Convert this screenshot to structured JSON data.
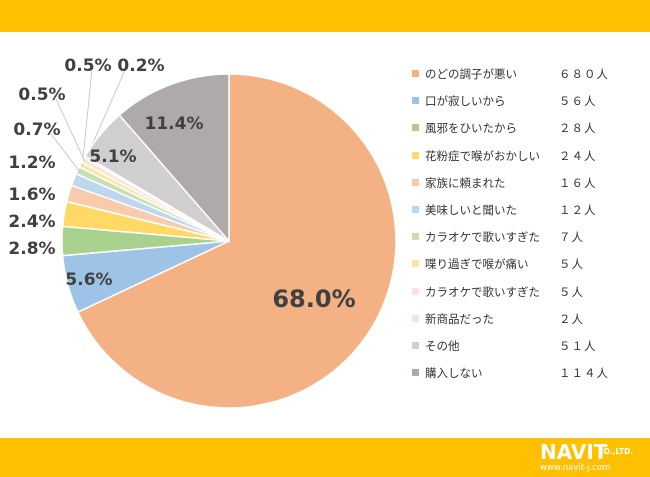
{
  "chart_data": {
    "type": "pie",
    "title": "",
    "slices": [
      {
        "label": "のどの調子が悪い",
        "count": "６８０人",
        "value": 68.0,
        "pct_label": "68.0%",
        "color": "#F4B183"
      },
      {
        "label": "口が寂しいから",
        "count": "５６人",
        "value": 5.6,
        "pct_label": "5.6%",
        "color": "#9DC3E6"
      },
      {
        "label": "風邪をひいたから",
        "count": "２８人",
        "value": 2.8,
        "pct_label": "2.8%",
        "color": "#A9D18E"
      },
      {
        "label": "花粉症で喉がおかしい",
        "count": "２４人",
        "value": 2.4,
        "pct_label": "2.4%",
        "color": "#FFD966"
      },
      {
        "label": "家族に頼まれた",
        "count": "１６人",
        "value": 1.6,
        "pct_label": "1.6%",
        "color": "#F8CBAD"
      },
      {
        "label": "美味しいと聞いた",
        "count": "１２人",
        "value": 1.2,
        "pct_label": "1.2%",
        "color": "#BDD7EE"
      },
      {
        "label": "カラオケで歌いすぎた",
        "count": "７人",
        "value": 0.7,
        "pct_label": "0.7%",
        "color": "#C5E0B4"
      },
      {
        "label": "喋り過ぎで喉が痛い",
        "count": "５人",
        "value": 0.5,
        "pct_label": "0.5%",
        "color": "#FFE699"
      },
      {
        "label": "カラオケで歌いすぎた",
        "count": "５人",
        "value": 0.5,
        "pct_label": "0.5%",
        "color": "#FBE5D6"
      },
      {
        "label": "新商品だった",
        "count": "２人",
        "value": 0.2,
        "pct_label": "0.2%",
        "color": "#DEEBF7"
      },
      {
        "label": "その他",
        "count": "５１人",
        "value": 5.1,
        "pct_label": "5.1%",
        "color": "#D0CECE"
      },
      {
        "label": "購入しない",
        "count": "１１４人",
        "value": 11.4,
        "pct_label": "11.4%",
        "color": "#AEAAAA"
      }
    ],
    "legend_position": "right"
  },
  "colors": {
    "band": "#FFC000",
    "label_text": "#404040"
  },
  "logo": {
    "name": "NAVIT",
    "company": "CO.,LTD.",
    "url": "www.navit-j.com"
  }
}
